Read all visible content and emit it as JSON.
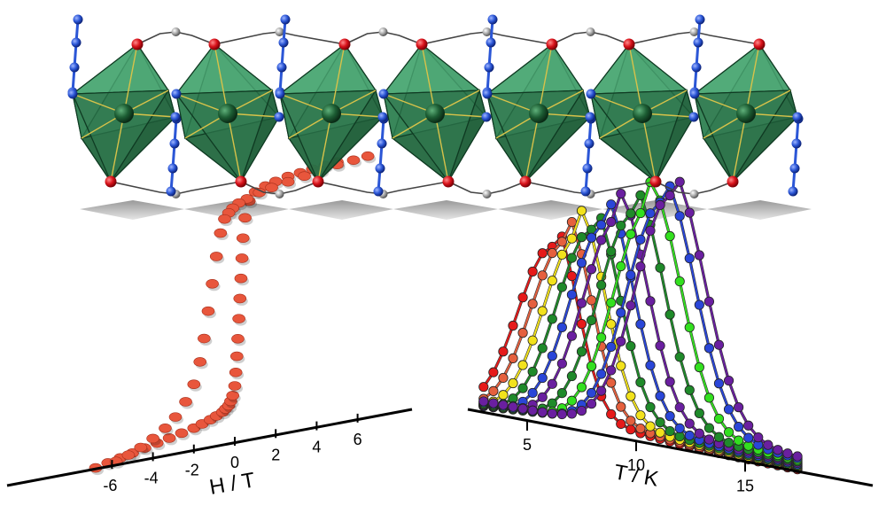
{
  "colors": {
    "octahedron": "#3f9a66",
    "octahedron_dark": "#1f6e42",
    "metal_atom": "#1d5e34",
    "oxygen_atom": "#d8121a",
    "nitrogen_atom": "#2b56d6",
    "carbon_atom": "#a9a9a9",
    "hysteresis_points": "#e8563c"
  },
  "chart_data": [
    {
      "type": "scatter",
      "description_label": "hysteresis loop",
      "xlabel": "H / T",
      "x_ticks": [
        "-6",
        "-4",
        "-2",
        "0",
        "2",
        "4",
        "6"
      ],
      "x_range": [
        -7,
        7
      ],
      "y_range": [
        -1,
        1
      ],
      "series": [
        {
          "color": "#e8563c",
          "x": [
            -6.8,
            -6.2,
            -5.6,
            -5.0,
            -4.4,
            -3.8,
            -3.2,
            -2.6,
            -2.0,
            -1.6,
            -1.2,
            -0.9,
            -0.6,
            -0.45,
            -0.3,
            -0.2,
            -0.1,
            0.0,
            0.05,
            0.1,
            0.15,
            0.2,
            0.25,
            0.3,
            0.35,
            0.4,
            0.5,
            0.7,
            1.0,
            1.5,
            2.0,
            2.6,
            3.2,
            3.8,
            4.4,
            5.0
          ],
          "y": [
            -0.97,
            -0.95,
            -0.93,
            -0.91,
            -0.89,
            -0.87,
            -0.85,
            -0.83,
            -0.81,
            -0.79,
            -0.77,
            -0.75,
            -0.73,
            -0.71,
            -0.69,
            -0.66,
            -0.62,
            -0.55,
            -0.45,
            -0.33,
            -0.2,
            -0.05,
            0.1,
            0.25,
            0.4,
            0.55,
            0.7,
            0.82,
            0.88,
            0.91,
            0.93,
            0.95,
            0.96,
            0.97,
            0.98,
            0.99
          ]
        },
        {
          "color": "#e8563c",
          "x": [
            6.5,
            5.8,
            5.0,
            4.2,
            3.4,
            2.6,
            1.8,
            1.2,
            0.6,
            0.2,
            -0.1,
            -0.3,
            -0.5,
            -0.7,
            -0.9,
            -1.1,
            -1.3,
            -1.5,
            -1.7,
            -2.0,
            -2.4,
            -2.9,
            -3.4,
            -4.0,
            -4.6,
            -5.2,
            -5.8
          ],
          "y": [
            0.99,
            0.98,
            0.97,
            0.95,
            0.93,
            0.91,
            0.89,
            0.87,
            0.84,
            0.82,
            0.79,
            0.76,
            0.72,
            0.62,
            0.45,
            0.25,
            0.05,
            -0.15,
            -0.32,
            -0.48,
            -0.6,
            -0.7,
            -0.77,
            -0.83,
            -0.88,
            -0.92,
            -0.95
          ]
        }
      ]
    },
    {
      "type": "line",
      "description_label": "temperature dependence",
      "xlabel": "T / K",
      "x_ticks": [
        "5",
        "10",
        "15"
      ],
      "x_range": [
        3,
        18
      ],
      "y_range": [
        0,
        1
      ],
      "series": [
        {
          "color": "#e61a1a",
          "peak_T": 6.2
        },
        {
          "color": "#e5603e",
          "peak_T": 6.8
        },
        {
          "color": "#f2e21c",
          "peak_T": 7.4
        },
        {
          "color": "#1f8a2a",
          "peak_T": 8.0
        },
        {
          "color": "#2a46d8",
          "peak_T": 8.6
        },
        {
          "color": "#6a1fa0",
          "peak_T": 9.2
        },
        {
          "color": "#1f8a2a",
          "peak_T": 9.9
        },
        {
          "color": "#33e01f",
          "peak_T": 10.6
        },
        {
          "color": "#2a46d8",
          "peak_T": 11.2
        },
        {
          "color": "#6a1fa0",
          "peak_T": 11.6
        }
      ]
    }
  ]
}
